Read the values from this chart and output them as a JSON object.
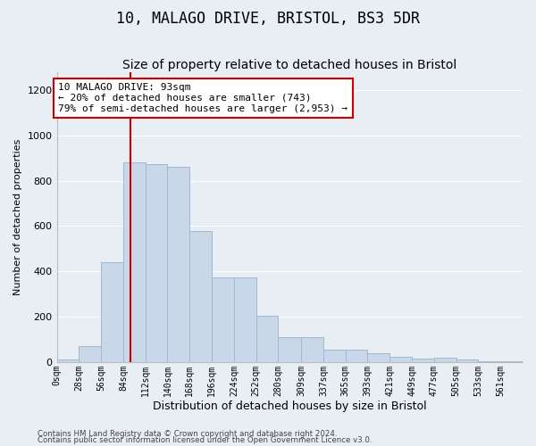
{
  "title1": "10, MALAGO DRIVE, BRISTOL, BS3 5DR",
  "title2": "Size of property relative to detached houses in Bristol",
  "xlabel": "Distribution of detached houses by size in Bristol",
  "ylabel": "Number of detached properties",
  "bar_heights": [
    10,
    70,
    440,
    880,
    875,
    860,
    580,
    375,
    375,
    205,
    110,
    110,
    55,
    55,
    40,
    25,
    15,
    18,
    10,
    5,
    3
  ],
  "bin_labels": [
    "0sqm",
    "28sqm",
    "56sqm",
    "84sqm",
    "112sqm",
    "140sqm",
    "168sqm",
    "196sqm",
    "224sqm",
    "252sqm",
    "280sqm",
    "309sqm",
    "337sqm",
    "365sqm",
    "393sqm",
    "421sqm",
    "449sqm",
    "477sqm",
    "505sqm",
    "533sqm",
    "561sqm"
  ],
  "bin_edges": [
    0,
    28,
    56,
    84,
    112,
    140,
    168,
    196,
    224,
    252,
    280,
    309,
    337,
    365,
    393,
    421,
    449,
    477,
    505,
    533,
    561,
    589
  ],
  "bar_color": "#c8d8e8",
  "bar_edge_color": "#a0b8d0",
  "property_size": 93,
  "red_line_color": "#cc0000",
  "annotation_text": "10 MALAGO DRIVE: 93sqm\n← 20% of detached houses are smaller (743)\n79% of semi-detached houses are larger (2,953) →",
  "annotation_box_color": "#ffffff",
  "annotation_box_edge": "#cc0000",
  "ylim": [
    0,
    1280
  ],
  "yticks": [
    0,
    200,
    400,
    600,
    800,
    1000,
    1200
  ],
  "footer1": "Contains HM Land Registry data © Crown copyright and database right 2024.",
  "footer2": "Contains public sector information licensed under the Open Government Licence v3.0.",
  "background_color": "#e8eef4",
  "grid_color": "#ffffff",
  "title1_fontsize": 12,
  "title2_fontsize": 10,
  "annot_fontsize": 8.0,
  "xlabel_fontsize": 9,
  "ylabel_fontsize": 8,
  "tick_fontsize": 7,
  "ytick_fontsize": 8
}
